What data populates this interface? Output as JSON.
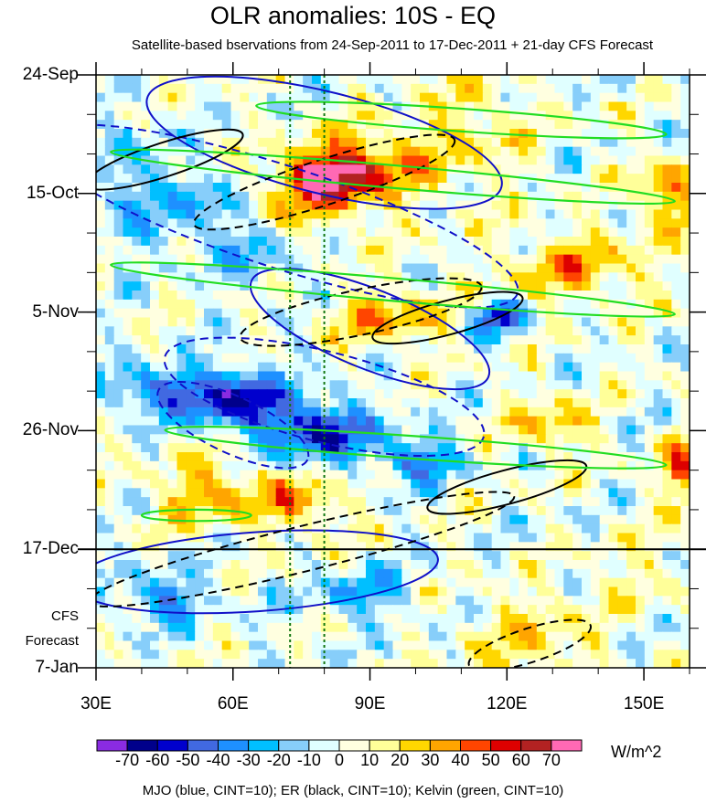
{
  "chart_data": {
    "type": "heatmap",
    "title": "OLR anomalies: 10S - EQ",
    "subtitle": "Satellite-based bservations from 24-Sep-2011 to 17-Dec-2011 + 21-day CFS Forecast",
    "x_axis": {
      "range": [
        30,
        160
      ],
      "tick_labels": [
        "30E",
        "60E",
        "90E",
        "120E",
        "150E"
      ],
      "tick_values": [
        30,
        60,
        90,
        120,
        150
      ]
    },
    "y_axis": {
      "direction": "time increases downward",
      "range_days": [
        0,
        105
      ],
      "tick_labels": [
        "24-Sep",
        "15-Oct",
        "5-Nov",
        "26-Nov",
        "17-Dec",
        "7-Jan"
      ],
      "tick_days": [
        0,
        21,
        42,
        63,
        84,
        105
      ]
    },
    "forecast_label_lines": [
      "CFS",
      "Forecast"
    ],
    "observation_end_day": 84,
    "vertical_reference_lines_lon": [
      72.5,
      80
    ],
    "colorbar": {
      "units": "W/m^2",
      "levels": [
        -70,
        -60,
        -50,
        -40,
        -30,
        -20,
        -10,
        0,
        10,
        20,
        30,
        40,
        50,
        60,
        70
      ],
      "level_labels": [
        "-70",
        "-60",
        "-50",
        "-40",
        "-30",
        "-20",
        "-10",
        "0",
        "10",
        "20",
        "30",
        "40",
        "50",
        "60",
        "70"
      ],
      "colors": [
        "#8a2be2",
        "#00008b",
        "#0000cd",
        "#4169e1",
        "#1e90ff",
        "#00bfff",
        "#87cefa",
        "#e0ffff",
        "#ffffe0",
        "#ffff99",
        "#ffd700",
        "#ffa500",
        "#ff4500",
        "#dd0000",
        "#b22222",
        "#ff69b4"
      ]
    },
    "anomaly_blobs": [
      {
        "lon": 80,
        "day": 18,
        "value": 50,
        "r_lon": 10,
        "r_day": 4
      },
      {
        "lon": 88,
        "day": 16,
        "value": 40,
        "r_lon": 14,
        "r_day": 6
      },
      {
        "lon": 76,
        "day": 24,
        "value": 20,
        "r_lon": 16,
        "r_day": 6
      },
      {
        "lon": 55,
        "day": 24,
        "value": -30,
        "r_lon": 8,
        "r_day": 6
      },
      {
        "lon": 38,
        "day": 20,
        "value": -30,
        "r_lon": 6,
        "r_day": 10
      },
      {
        "lon": 66,
        "day": 32,
        "value": -20,
        "r_lon": 12,
        "r_day": 5
      },
      {
        "lon": 112,
        "day": 10,
        "value": 20,
        "r_lon": 12,
        "r_day": 10
      },
      {
        "lon": 155,
        "day": 21,
        "value": 40,
        "r_lon": 6,
        "r_day": 6
      },
      {
        "lon": 135,
        "day": 34,
        "value": 30,
        "r_lon": 16,
        "r_day": 6
      },
      {
        "lon": 95,
        "day": 43,
        "value": 30,
        "r_lon": 14,
        "r_day": 5
      },
      {
        "lon": 118,
        "day": 43,
        "value": -50,
        "r_lon": 6,
        "r_day": 3
      },
      {
        "lon": 60,
        "day": 57,
        "value": -60,
        "r_lon": 10,
        "r_day": 5
      },
      {
        "lon": 78,
        "day": 63,
        "value": -60,
        "r_lon": 12,
        "r_day": 5
      },
      {
        "lon": 100,
        "day": 68,
        "value": -40,
        "r_lon": 8,
        "r_day": 4
      },
      {
        "lon": 42,
        "day": 56,
        "value": -40,
        "r_lon": 10,
        "r_day": 4
      },
      {
        "lon": 55,
        "day": 74,
        "value": 30,
        "r_lon": 12,
        "r_day": 6
      },
      {
        "lon": 75,
        "day": 76,
        "value": 30,
        "r_lon": 10,
        "r_day": 5
      },
      {
        "lon": 130,
        "day": 62,
        "value": 30,
        "r_lon": 8,
        "r_day": 5
      },
      {
        "lon": 158,
        "day": 70,
        "value": 40,
        "r_lon": 4,
        "r_day": 6
      },
      {
        "lon": 45,
        "day": 93,
        "value": -40,
        "r_lon": 8,
        "r_day": 4
      },
      {
        "lon": 88,
        "day": 92,
        "value": -30,
        "r_lon": 10,
        "r_day": 4
      },
      {
        "lon": 125,
        "day": 100,
        "value": 20,
        "r_lon": 14,
        "r_day": 8
      },
      {
        "lon": 150,
        "day": 88,
        "value": 10,
        "r_lon": 14,
        "r_day": 8
      }
    ],
    "contour_overlays": [
      {
        "family": "MJO",
        "sign": "negative",
        "lon": 70,
        "day": 25,
        "r_lon": 55,
        "r_day": 9,
        "angle_deg": 18
      },
      {
        "family": "MJO",
        "sign": "negative",
        "lon": 80,
        "day": 57,
        "r_lon": 36,
        "r_day": 8,
        "angle_deg": 14
      },
      {
        "family": "MJO",
        "sign": "negative",
        "lon": 60,
        "day": 62,
        "r_lon": 18,
        "r_day": 5,
        "angle_deg": 25
      },
      {
        "family": "MJO",
        "sign": "positive",
        "lon": 80,
        "day": 12,
        "r_lon": 40,
        "r_day": 9,
        "angle_deg": 14
      },
      {
        "family": "MJO",
        "sign": "positive",
        "lon": 90,
        "day": 45,
        "r_lon": 28,
        "r_day": 7,
        "angle_deg": 22
      },
      {
        "family": "MJO",
        "sign": "positive",
        "lon": 65,
        "day": 88,
        "r_lon": 40,
        "r_day": 7,
        "angle_deg": -4
      },
      {
        "family": "ER",
        "sign": "positive",
        "lon": 45,
        "day": 15,
        "r_lon": 18,
        "r_day": 3,
        "angle_deg": -18
      },
      {
        "family": "ER",
        "sign": "positive",
        "lon": 107,
        "day": 43,
        "r_lon": 17,
        "r_day": 3,
        "angle_deg": -15
      },
      {
        "family": "ER",
        "sign": "positive",
        "lon": 120,
        "day": 73,
        "r_lon": 18,
        "r_day": 3,
        "angle_deg": -15
      },
      {
        "family": "ER",
        "sign": "negative",
        "lon": 80,
        "day": 19,
        "r_lon": 30,
        "r_day": 4,
        "angle_deg": -18
      },
      {
        "family": "ER",
        "sign": "negative",
        "lon": 88,
        "day": 42,
        "r_lon": 27,
        "r_day": 4,
        "angle_deg": -12
      },
      {
        "family": "ER",
        "sign": "negative",
        "lon": 75,
        "day": 84,
        "r_lon": 48,
        "r_day": 4,
        "angle_deg": -14
      },
      {
        "family": "ER",
        "sign": "negative",
        "lon": 125,
        "day": 101,
        "r_lon": 14,
        "r_day": 3,
        "angle_deg": -18
      },
      {
        "family": "Kelvin",
        "sign": "positive",
        "lon": 95,
        "day": 18,
        "r_lon": 62,
        "r_day": 2,
        "angle_deg": 5
      },
      {
        "family": "Kelvin",
        "sign": "positive",
        "lon": 95,
        "day": 38,
        "r_lon": 62,
        "r_day": 2,
        "angle_deg": 5
      },
      {
        "family": "Kelvin",
        "sign": "positive",
        "lon": 100,
        "day": 66,
        "r_lon": 55,
        "r_day": 2,
        "angle_deg": 4
      },
      {
        "family": "Kelvin",
        "sign": "positive",
        "lon": 110,
        "day": 8,
        "r_lon": 45,
        "r_day": 2,
        "angle_deg": 4
      },
      {
        "family": "Kelvin",
        "sign": "positive",
        "lon": 52,
        "day": 78,
        "r_lon": 12,
        "r_day": 1,
        "angle_deg": 0
      }
    ],
    "contour_colors": {
      "MJO": "#1010c8",
      "ER": "#000000",
      "Kelvin": "#22dd22"
    },
    "legend_caption": "MJO (blue, CINT=10); ER (black, CINT=10); Kelvin (green, CINT=10)"
  }
}
